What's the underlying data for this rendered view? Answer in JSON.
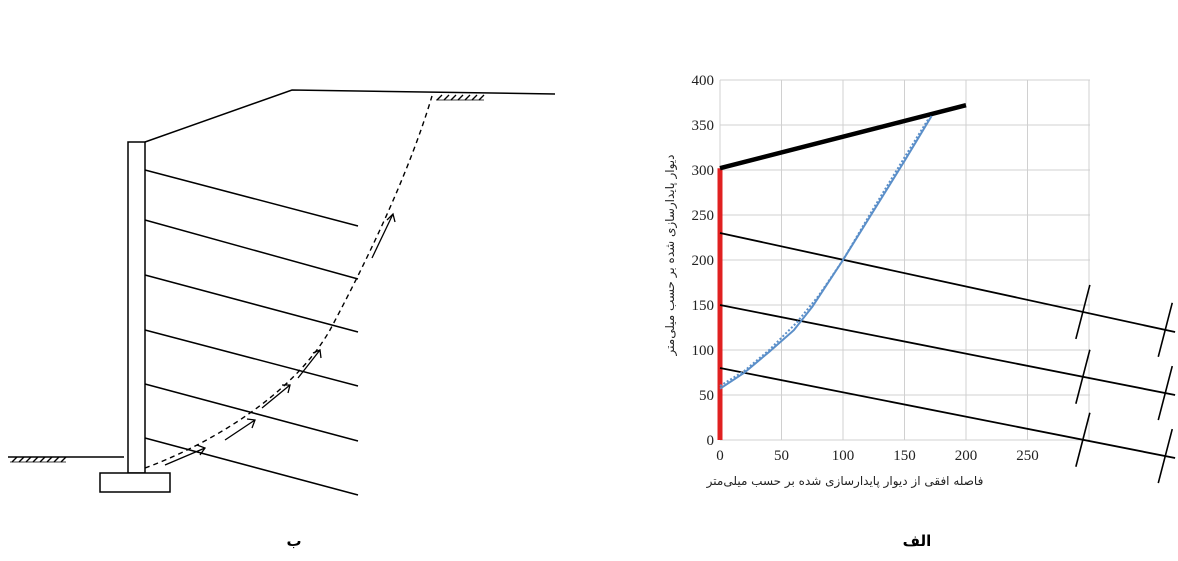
{
  "panels": {
    "left_label": "ب",
    "right_label": "الف"
  },
  "chart_data": {
    "type": "line",
    "xlabel": "فاصله افقی از دیوار پایدارسازی شده بر حسب میلی‌متر",
    "ylabel": "دیوار پایدارسازی شده بر حسب میلی‌متر",
    "xlim": [
      0,
      300
    ],
    "ylim": [
      0,
      400
    ],
    "x_ticks": [
      0,
      50,
      100,
      150,
      200,
      250
    ],
    "y_ticks": [
      0,
      50,
      100,
      150,
      200,
      250,
      300,
      350,
      400
    ],
    "grid": true,
    "colors": {
      "wall": "#e02020",
      "failure": "#5b8fc9",
      "structure": "#000000",
      "grid": "#d0d0d0"
    },
    "series": [
      {
        "kind": "wall",
        "points": [
          [
            0,
            0
          ],
          [
            0,
            302
          ]
        ]
      },
      {
        "kind": "backfill-surface",
        "points": [
          [
            0,
            302
          ],
          [
            200,
            372
          ]
        ]
      },
      {
        "kind": "reinforcement",
        "points": [
          [
            0,
            230
          ],
          [
            370,
            120
          ]
        ]
      },
      {
        "kind": "reinforcement",
        "points": [
          [
            0,
            150
          ],
          [
            370,
            50
          ]
        ]
      },
      {
        "kind": "reinforcement",
        "points": [
          [
            0,
            80
          ],
          [
            370,
            -20
          ]
        ]
      },
      {
        "kind": "failure-surface-fit",
        "points": [
          [
            0,
            57
          ],
          [
            20,
            75
          ],
          [
            40,
            98
          ],
          [
            60,
            122
          ],
          [
            75,
            148
          ],
          [
            100,
            200
          ],
          [
            125,
            255
          ],
          [
            150,
            310
          ],
          [
            172,
            360
          ]
        ]
      },
      {
        "kind": "failure-surface-measured",
        "points": [
          [
            0,
            60
          ],
          [
            20,
            77
          ],
          [
            40,
            100
          ],
          [
            62,
            130
          ],
          [
            80,
            160
          ],
          [
            100,
            200
          ],
          [
            125,
            258
          ],
          [
            150,
            314
          ],
          [
            170,
            358
          ]
        ]
      }
    ]
  }
}
